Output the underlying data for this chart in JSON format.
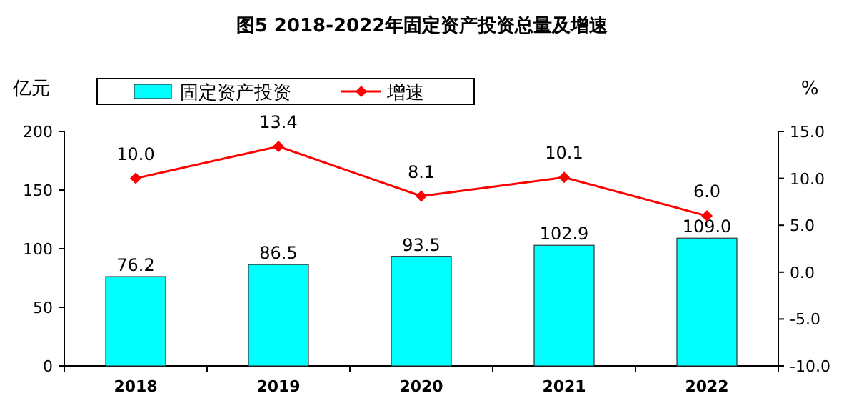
{
  "chart_data": {
    "type": "bar",
    "title": "图5 2018-2022年固定资产投资总量及增速",
    "ylabel": "亿元",
    "y2label": "%",
    "categories": [
      "2018",
      "2019",
      "2020",
      "2021",
      "2022"
    ],
    "series": [
      {
        "name": "固定资产投资",
        "color": "#00ffff",
        "values": [
          76.2,
          86.5,
          93.5,
          102.9,
          109.0
        ],
        "value_labels": [
          "76.2",
          "86.5",
          "93.5",
          "102.9",
          "109.0"
        ]
      },
      {
        "name": "增速",
        "type": "line",
        "axis": "y2",
        "color": "#ff0000",
        "values": [
          10.0,
          13.4,
          8.1,
          10.1,
          6.0
        ],
        "value_labels": [
          "10.0",
          "13.4",
          "8.1",
          "10.1",
          "6.0"
        ]
      }
    ],
    "ylim": [
      0,
      200
    ],
    "yticks": [
      0,
      50,
      100,
      150,
      200
    ],
    "y2lim": [
      -10,
      15
    ],
    "y2ticks": [
      {
        "value": -10,
        "label": "-10.0"
      },
      {
        "value": -5,
        "label": "-5.0"
      },
      {
        "value": 0,
        "label": "0.0"
      },
      {
        "value": 5,
        "label": "5.0"
      },
      {
        "value": 10,
        "label": "10.0"
      },
      {
        "value": 15,
        "label": "15.0"
      }
    ],
    "legend": "top",
    "marker": "diamond",
    "grid": false
  }
}
